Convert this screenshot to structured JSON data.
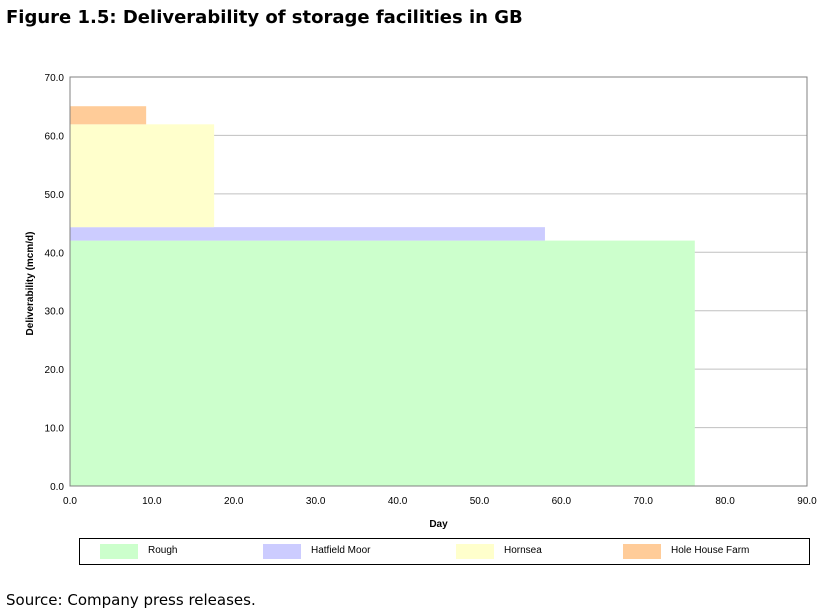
{
  "figure": {
    "title": "Figure 1.5: Deliverability of storage facilities in GB",
    "source": "Source: Company press releases."
  },
  "chart_data": {
    "type": "area",
    "title": "",
    "xlabel": "Day",
    "ylabel": "Deliverability (mcm/d)",
    "xlim": [
      0,
      90
    ],
    "ylim": [
      0,
      70
    ],
    "xticks": [
      "0.0",
      "10.0",
      "20.0",
      "30.0",
      "40.0",
      "50.0",
      "60.0",
      "70.0",
      "80.0",
      "90.0"
    ],
    "yticks": [
      "0.0",
      "10.0",
      "20.0",
      "30.0",
      "40.0",
      "50.0",
      "60.0",
      "70.0"
    ],
    "grid": true,
    "legend_position": "bottom",
    "series": [
      {
        "name": "Rough",
        "color": "#ccffcc",
        "x_end": 76.3,
        "y_start": 0.0,
        "y_end": 42.0
      },
      {
        "name": "Hatfield Moor",
        "color": "#ccccff",
        "x_end": 58.0,
        "y_start": 42.0,
        "y_end": 44.3
      },
      {
        "name": "Hornsea",
        "color": "#ffffcc",
        "x_end": 17.6,
        "y_start": 44.3,
        "y_end": 61.9
      },
      {
        "name": "Hole House Farm",
        "color": "#ffcc99",
        "x_end": 9.3,
        "y_start": 61.9,
        "y_end": 65.0
      }
    ]
  }
}
